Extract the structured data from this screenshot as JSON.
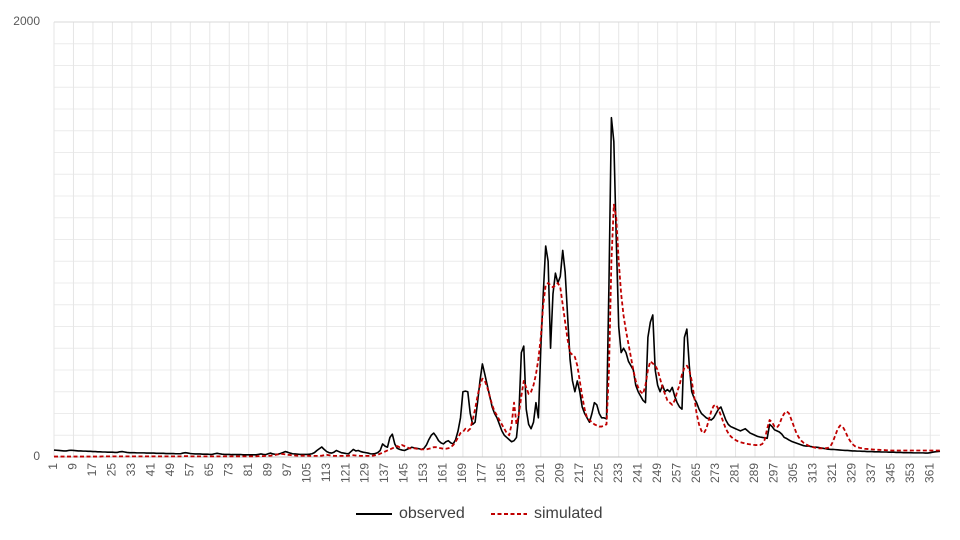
{
  "chart_data": {
    "type": "line",
    "x": [
      1,
      2,
      3,
      4,
      5,
      6,
      7,
      8,
      9,
      10,
      11,
      12,
      13,
      14,
      15,
      16,
      17,
      18,
      19,
      20,
      21,
      22,
      23,
      24,
      25,
      26,
      27,
      28,
      29,
      30,
      31,
      32,
      33,
      34,
      35,
      36,
      37,
      38,
      39,
      40,
      41,
      42,
      43,
      44,
      45,
      46,
      47,
      48,
      49,
      50,
      51,
      52,
      53,
      54,
      55,
      56,
      57,
      58,
      59,
      60,
      61,
      62,
      63,
      64,
      65,
      66,
      67,
      68,
      69,
      70,
      71,
      72,
      73,
      74,
      75,
      76,
      77,
      78,
      79,
      80,
      81,
      82,
      83,
      84,
      85,
      86,
      87,
      88,
      89,
      90,
      91,
      92,
      93,
      94,
      95,
      96,
      97,
      98,
      99,
      100,
      101,
      102,
      103,
      104,
      105,
      106,
      107,
      108,
      109,
      110,
      111,
      112,
      113,
      114,
      115,
      116,
      117,
      118,
      119,
      120,
      121,
      122,
      123,
      124,
      125,
      126,
      127,
      128,
      129,
      130,
      131,
      132,
      133,
      134,
      135,
      136,
      137,
      138,
      139,
      140,
      141,
      142,
      143,
      144,
      145,
      146,
      147,
      148,
      149,
      150,
      151,
      152,
      153,
      154,
      155,
      156,
      157,
      158,
      159,
      160,
      161,
      162,
      163,
      164,
      165,
      166,
      167,
      168,
      169,
      170,
      171,
      172,
      173,
      174,
      175,
      176,
      177,
      178,
      179,
      180,
      181,
      182,
      183,
      184,
      185,
      186,
      187,
      188,
      189,
      190,
      191,
      192,
      193,
      194,
      195,
      196,
      197,
      198,
      199,
      200,
      201,
      202,
      203,
      204,
      205,
      206,
      207,
      208,
      209,
      210,
      211,
      212,
      213,
      214,
      215,
      216,
      217,
      218,
      219,
      220,
      221,
      222,
      223,
      224,
      225,
      226,
      227,
      228,
      229,
      230,
      231,
      232,
      233,
      234,
      235,
      236,
      237,
      238,
      239,
      240,
      241,
      242,
      243,
      244,
      245,
      246,
      247,
      248,
      249,
      250,
      251,
      252,
      253,
      254,
      255,
      256,
      257,
      258,
      259,
      260,
      261,
      262,
      263,
      264,
      265,
      266,
      267,
      268,
      269,
      270,
      271,
      272,
      273,
      274,
      275,
      276,
      277,
      278,
      279,
      280,
      281,
      282,
      283,
      284,
      285,
      286,
      287,
      288,
      289,
      290,
      291,
      292,
      293,
      294,
      295,
      296,
      297,
      298,
      299,
      300,
      301,
      302,
      303,
      304,
      305,
      306,
      307,
      308,
      309,
      310,
      311,
      312,
      313,
      314,
      315,
      316,
      317,
      318,
      319,
      320,
      321,
      322,
      323,
      324,
      325,
      326,
      327,
      328,
      329,
      330,
      331,
      332,
      333,
      334,
      335,
      336,
      337,
      338,
      339,
      340,
      341,
      342,
      343,
      344,
      345,
      346,
      347,
      348,
      349,
      350,
      351,
      352,
      353,
      354,
      355,
      356,
      357,
      358,
      359,
      360,
      361,
      362,
      363,
      364,
      365
    ],
    "series": [
      {
        "name": "observed",
        "color": "#000000",
        "dash": false,
        "values": [
          32,
          31,
          30,
          29,
          28,
          28,
          30,
          31,
          30,
          29,
          28,
          28,
          27,
          27,
          26,
          26,
          25,
          25,
          24,
          24,
          23,
          23,
          22,
          22,
          22,
          21,
          21,
          24,
          25,
          23,
          21,
          20,
          20,
          20,
          19,
          19,
          19,
          19,
          18,
          18,
          18,
          18,
          17,
          17,
          17,
          17,
          16,
          16,
          16,
          16,
          15,
          15,
          15,
          18,
          20,
          18,
          16,
          15,
          14,
          14,
          14,
          13,
          13,
          13,
          12,
          12,
          15,
          17,
          15,
          13,
          12,
          12,
          12,
          11,
          11,
          11,
          11,
          11,
          10,
          10,
          10,
          10,
          10,
          10,
          12,
          14,
          12,
          11,
          15,
          18,
          14,
          12,
          13,
          16,
          20,
          25,
          22,
          18,
          15,
          14,
          13,
          12,
          12,
          12,
          12,
          13,
          15,
          20,
          30,
          38,
          46,
          35,
          25,
          20,
          18,
          22,
          30,
          25,
          20,
          18,
          16,
          15,
          25,
          35,
          28,
          30,
          25,
          22,
          20,
          18,
          15,
          14,
          16,
          20,
          30,
          60,
          50,
          45,
          90,
          105,
          60,
          40,
          35,
          32,
          30,
          35,
          40,
          45,
          42,
          40,
          38,
          35,
          40,
          55,
          80,
          100,
          110,
          95,
          75,
          65,
          60,
          70,
          75,
          65,
          60,
          80,
          120,
          180,
          300,
          303,
          300,
          200,
          150,
          160,
          250,
          350,
          428,
          380,
          330,
          280,
          230,
          200,
          180,
          150,
          120,
          100,
          90,
          80,
          70,
          75,
          90,
          200,
          480,
          510,
          220,
          150,
          130,
          160,
          250,
          180,
          500,
          750,
          970,
          900,
          500,
          750,
          845,
          800,
          830,
          950,
          850,
          650,
          450,
          350,
          300,
          350,
          300,
          230,
          200,
          180,
          160,
          200,
          250,
          240,
          200,
          180,
          180,
          175,
          800,
          1560,
          1450,
          1000,
          600,
          480,
          500,
          480,
          440,
          420,
          400,
          330,
          300,
          280,
          260,
          250,
          550,
          620,
          653,
          400,
          330,
          300,
          330,
          300,
          310,
          300,
          320,
          280,
          250,
          230,
          220,
          550,
          588,
          420,
          300,
          270,
          250,
          220,
          200,
          190,
          180,
          175,
          170,
          180,
          200,
          220,
          230,
          200,
          170,
          150,
          140,
          135,
          130,
          125,
          120,
          125,
          130,
          120,
          110,
          105,
          100,
          95,
          92,
          90,
          88,
          86,
          150,
          140,
          125,
          120,
          115,
          105,
          90,
          85,
          78,
          72,
          68,
          64,
          60,
          56,
          52,
          50,
          50,
          48,
          46,
          45,
          44,
          42,
          40,
          38,
          36,
          35,
          35,
          34,
          33,
          32,
          31,
          30,
          30,
          29,
          28,
          28,
          27,
          27,
          26,
          26,
          25,
          25,
          25,
          24,
          24,
          24,
          23,
          23,
          23,
          22,
          22,
          22,
          21,
          21,
          21,
          20,
          20,
          20,
          20,
          19,
          19,
          19,
          19,
          19,
          18,
          18,
          20,
          22,
          24,
          25,
          26
        ]
      },
      {
        "name": "simulated",
        "color": "#c00000",
        "dash": true,
        "values": [
          2,
          2,
          2,
          2,
          2,
          2,
          2,
          2,
          2,
          2,
          2,
          2,
          2,
          2,
          2,
          2,
          2,
          2,
          2,
          2,
          3,
          3,
          3,
          3,
          3,
          3,
          3,
          3,
          3,
          3,
          3,
          3,
          3,
          3,
          3,
          3,
          3,
          3,
          3,
          3,
          3,
          3,
          3,
          3,
          3,
          3,
          3,
          3,
          3,
          3,
          3,
          3,
          3,
          4,
          4,
          4,
          3,
          3,
          3,
          3,
          3,
          3,
          3,
          3,
          3,
          3,
          3,
          3,
          3,
          3,
          3,
          3,
          3,
          3,
          3,
          3,
          3,
          3,
          3,
          3,
          3,
          3,
          3,
          3,
          4,
          4,
          4,
          5,
          5,
          6,
          8,
          10,
          12,
          14,
          14,
          12,
          10,
          9,
          8,
          7,
          6,
          6,
          6,
          6,
          6,
          5,
          5,
          5,
          5,
          5,
          6,
          8,
          10,
          8,
          6,
          5,
          5,
          5,
          5,
          5,
          5,
          6,
          8,
          8,
          7,
          6,
          5,
          5,
          5,
          5,
          5,
          6,
          8,
          10,
          15,
          20,
          25,
          30,
          35,
          40,
          45,
          50,
          45,
          55,
          50,
          45,
          40,
          40,
          40,
          38,
          36,
          35,
          35,
          35,
          38,
          40,
          45,
          45,
          42,
          40,
          38,
          38,
          40,
          45,
          55,
          70,
          90,
          110,
          115,
          130,
          120,
          130,
          170,
          220,
          280,
          330,
          360,
          350,
          320,
          280,
          240,
          210,
          190,
          170,
          150,
          130,
          110,
          100,
          150,
          250,
          150,
          200,
          280,
          350,
          320,
          290,
          300,
          330,
          380,
          450,
          550,
          700,
          790,
          800,
          790,
          780,
          790,
          800,
          780,
          700,
          620,
          540,
          480,
          470,
          460,
          420,
          350,
          280,
          220,
          180,
          170,
          160,
          150,
          145,
          140,
          140,
          145,
          150,
          400,
          900,
          1160,
          1100,
          900,
          750,
          650,
          580,
          520,
          460,
          400,
          350,
          320,
          300,
          290,
          330,
          400,
          440,
          430,
          420,
          400,
          360,
          320,
          290,
          260,
          250,
          240,
          260,
          300,
          330,
          380,
          410,
          420,
          400,
          350,
          280,
          200,
          150,
          120,
          110,
          130,
          170,
          210,
          235,
          240,
          220,
          190,
          160,
          130,
          110,
          95,
          85,
          78,
          72,
          68,
          65,
          62,
          60,
          58,
          56,
          55,
          55,
          55,
          60,
          80,
          130,
          170,
          160,
          140,
          135,
          150,
          180,
          200,
          210,
          200,
          170,
          140,
          110,
          90,
          75,
          65,
          58,
          52,
          48,
          45,
          42,
          40,
          40,
          40,
          40,
          42,
          50,
          70,
          100,
          130,
          145,
          140,
          120,
          95,
          75,
          60,
          50,
          45,
          42,
          40,
          38,
          37,
          36,
          35,
          34,
          33,
          33,
          32,
          32,
          31,
          31,
          30,
          30,
          30,
          30,
          30,
          30,
          30,
          30,
          30,
          30,
          30,
          30,
          30,
          30,
          30,
          30,
          30,
          30,
          30,
          30,
          30
        ]
      }
    ],
    "xlim": [
      1,
      365
    ],
    "xticks": [
      1,
      9,
      17,
      25,
      33,
      41,
      49,
      57,
      65,
      73,
      81,
      89,
      97,
      105,
      113,
      121,
      129,
      137,
      145,
      153,
      161,
      169,
      177,
      185,
      193,
      201,
      209,
      217,
      225,
      233,
      241,
      249,
      257,
      265,
      273,
      281,
      289,
      297,
      305,
      313,
      321,
      329,
      337,
      345,
      353,
      361
    ],
    "ylim": [
      0,
      2000
    ],
    "yticks": [
      0,
      2000
    ],
    "yminor": [
      100,
      200,
      300,
      400,
      500,
      600,
      700,
      800,
      900,
      1000,
      1100,
      1200,
      1300,
      1400,
      1500,
      1600,
      1700,
      1800,
      1900
    ],
    "grid": true,
    "legend": "bottom"
  }
}
